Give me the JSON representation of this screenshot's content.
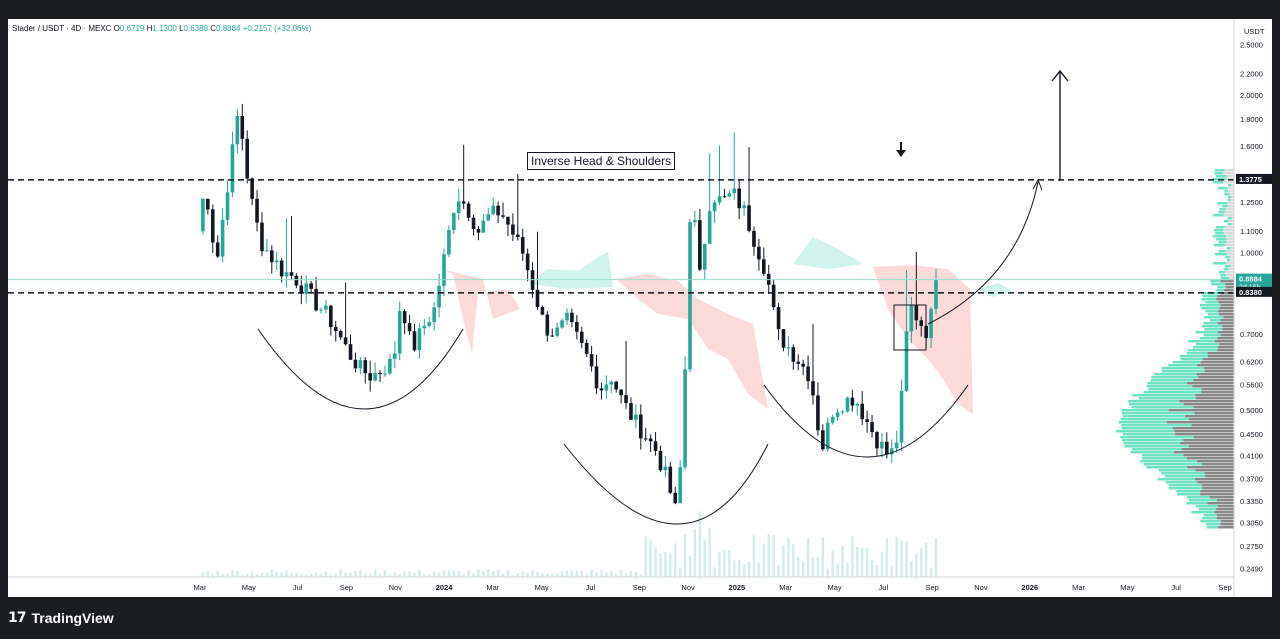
{
  "legend": {
    "symbol": "Stader / USDT · 4D · MEXC",
    "o_label": "O",
    "o": "0.6719",
    "h_label": "H",
    "h": "1.1300",
    "l_label": "L",
    "l": "0.6388",
    "c_label": "C",
    "c": "0.8884",
    "change": "+0.2157 (+32.06%)"
  },
  "annotation": {
    "pattern_label": "Inverse Head & Shoulders"
  },
  "footer": {
    "brand": "TradingView",
    "logo_glyph": "17"
  },
  "colors": {
    "up": "#26a69a",
    "down": "#131722",
    "cloud_green": "#c8f2e8",
    "cloud_red": "#fbd3d3",
    "volume": "#b2dfdb",
    "profile_up": "#3dd9b0",
    "profile_down": "#555555",
    "price_line": "#9adfcf"
  },
  "chart_data": {
    "type": "candlestick",
    "symbol": "Stader / USDT",
    "timeframe": "4D",
    "exchange": "MEXC",
    "y_unit": "USDT",
    "y_scale": "log",
    "y_ticks": [
      2.5,
      2.2,
      2.0,
      1.8,
      1.6,
      1.25,
      1.1,
      1.0,
      0.7,
      0.62,
      0.56,
      0.5,
      0.45,
      0.41,
      0.37,
      0.335,
      0.305,
      0.275,
      0.249
    ],
    "y_tick_labels": [
      "2.5000",
      "2.2000",
      "2.0000",
      "1.8000",
      "1.6000",
      "1.2500",
      "1.1000",
      "1.0000",
      "0.7000",
      "0.6200",
      "0.5600",
      "0.5000",
      "0.4500",
      "0.4100",
      "0.3700",
      "0.3350",
      "0.3050",
      "0.2750",
      "0.2490"
    ],
    "ylim": [
      0.24,
      2.7
    ],
    "x_ticks": [
      "Mar",
      "May",
      "Jul",
      "Sep",
      "Nov",
      "2024",
      "Mar",
      "May",
      "Jul",
      "Sep",
      "Nov",
      "2025",
      "Mar",
      "May",
      "Jul",
      "Sep",
      "Nov",
      "2026",
      "Mar",
      "May",
      "Jul",
      "Sep"
    ],
    "price_labels": [
      {
        "value": 1.3775,
        "text": "1.3775",
        "style": "level"
      },
      {
        "value": 0.8884,
        "text": "0.8884",
        "sub": "2d 16h",
        "style": "current"
      },
      {
        "value": 0.838,
        "text": "0.8380",
        "style": "level"
      }
    ],
    "horizontal_levels": [
      1.3775,
      0.838
    ],
    "current_price": 0.8884,
    "candle_anchors": [
      [
        0,
        1.1
      ],
      [
        0.01,
        1.35
      ],
      [
        0.025,
        0.95
      ],
      [
        0.04,
        1.35
      ],
      [
        0.055,
        1.88
      ],
      [
        0.07,
        1.3
      ],
      [
        0.085,
        1.05
      ],
      [
        0.1,
        0.98
      ],
      [
        0.115,
        0.92
      ],
      [
        0.13,
        0.9
      ],
      [
        0.145,
        0.85
      ],
      [
        0.16,
        0.8
      ],
      [
        0.175,
        0.76
      ],
      [
        0.19,
        0.7
      ],
      [
        0.205,
        0.64
      ],
      [
        0.22,
        0.6
      ],
      [
        0.235,
        0.58
      ],
      [
        0.25,
        0.6
      ],
      [
        0.265,
        0.62
      ],
      [
        0.275,
        0.82
      ],
      [
        0.29,
        0.65
      ],
      [
        0.305,
        0.72
      ],
      [
        0.32,
        0.78
      ],
      [
        0.335,
        1.0
      ],
      [
        0.35,
        1.3
      ],
      [
        0.365,
        1.22
      ],
      [
        0.38,
        1.1
      ],
      [
        0.395,
        1.18
      ],
      [
        0.41,
        1.2
      ],
      [
        0.425,
        1.1
      ],
      [
        0.44,
        1.0
      ],
      [
        0.455,
        0.85
      ],
      [
        0.47,
        0.72
      ],
      [
        0.485,
        0.7
      ],
      [
        0.5,
        0.74
      ],
      [
        0.515,
        0.68
      ],
      [
        0.53,
        0.62
      ],
      [
        0.545,
        0.55
      ],
      [
        0.56,
        0.58
      ],
      [
        0.575,
        0.52
      ],
      [
        0.59,
        0.48
      ],
      [
        0.605,
        0.45
      ],
      [
        0.62,
        0.42
      ],
      [
        0.635,
        0.37
      ],
      [
        0.65,
        0.31
      ],
      [
        0.66,
        0.6
      ],
      [
        0.668,
        1.35
      ],
      [
        0.68,
        0.9
      ],
      [
        0.695,
        1.3
      ],
      [
        0.71,
        1.25
      ],
      [
        0.725,
        1.3
      ],
      [
        0.74,
        1.2
      ],
      [
        0.755,
        1.05
      ],
      [
        0.77,
        0.92
      ],
      [
        0.785,
        0.7
      ],
      [
        0.8,
        0.66
      ],
      [
        0.815,
        0.62
      ],
      [
        0.83,
        0.58
      ],
      [
        0.845,
        0.42
      ],
      [
        0.86,
        0.5
      ],
      [
        0.875,
        0.52
      ],
      [
        0.89,
        0.53
      ],
      [
        0.905,
        0.48
      ],
      [
        0.92,
        0.44
      ],
      [
        0.935,
        0.41
      ],
      [
        0.945,
        0.42
      ],
      [
        0.955,
        0.55
      ],
      [
        0.963,
        0.8
      ],
      [
        0.975,
        0.75
      ],
      [
        0.99,
        0.7
      ],
      [
        1.0,
        0.8884
      ]
    ],
    "annotations": [
      {
        "type": "label",
        "text": "Inverse Head & Shoulders"
      },
      {
        "type": "arc",
        "role": "left-shoulder"
      },
      {
        "type": "arc",
        "role": "head"
      },
      {
        "type": "arc",
        "role": "right-shoulder"
      },
      {
        "type": "rectangle",
        "role": "consolidation"
      },
      {
        "type": "arrow",
        "role": "breakout-target",
        "direction": "up"
      },
      {
        "type": "arrow",
        "role": "marker",
        "direction": "down"
      }
    ]
  }
}
